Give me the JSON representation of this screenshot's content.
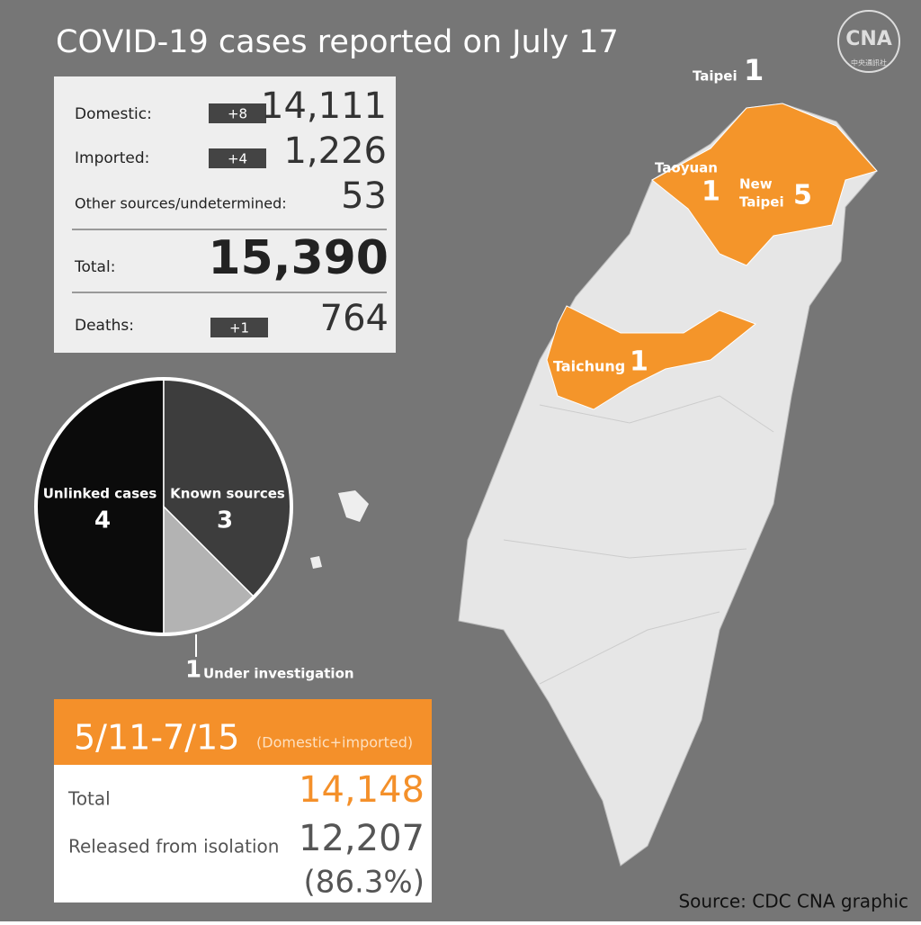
{
  "header": {
    "title": "COVID-19 cases reported on July 17",
    "logo": "CNA",
    "logo_sub": "中央通訊社"
  },
  "stats": {
    "rows": [
      {
        "label": "Domestic:",
        "change": "+8",
        "value": "14,111"
      },
      {
        "label": "Imported:",
        "change": "+4",
        "value": "1,226"
      },
      {
        "label": "Other sources/undetermined:",
        "value": "53"
      }
    ],
    "total": {
      "label": "Total:",
      "value": "15,390"
    },
    "deaths": {
      "label": "Deaths:",
      "change": "+1",
      "value": "764"
    }
  },
  "chart_data": {
    "type": "pie",
    "categories": [
      "Unlinked cases",
      "Known sources",
      "Under investigation"
    ],
    "values": [
      4,
      3,
      1
    ],
    "colors": [
      "#0b0b0b",
      "#3d3d3d",
      "#b3b3b3"
    ]
  },
  "map": {
    "labels": [
      {
        "name": "Taipei",
        "count": "1"
      },
      {
        "name": "Taoyuan",
        "count": "1"
      },
      {
        "name": "New",
        "name2": "Taipei",
        "count": "5"
      },
      {
        "name": "Taichung",
        "count": "1"
      }
    ]
  },
  "summary": {
    "period": "5/11-7/15",
    "note": "(Domestic+imported)",
    "rows": [
      {
        "label": "Total",
        "value": "14,148"
      },
      {
        "label": "Released from isolation",
        "value": "12,207",
        "percent": "(86.3%)"
      }
    ]
  },
  "source": "Source: CDC  CNA graphic"
}
